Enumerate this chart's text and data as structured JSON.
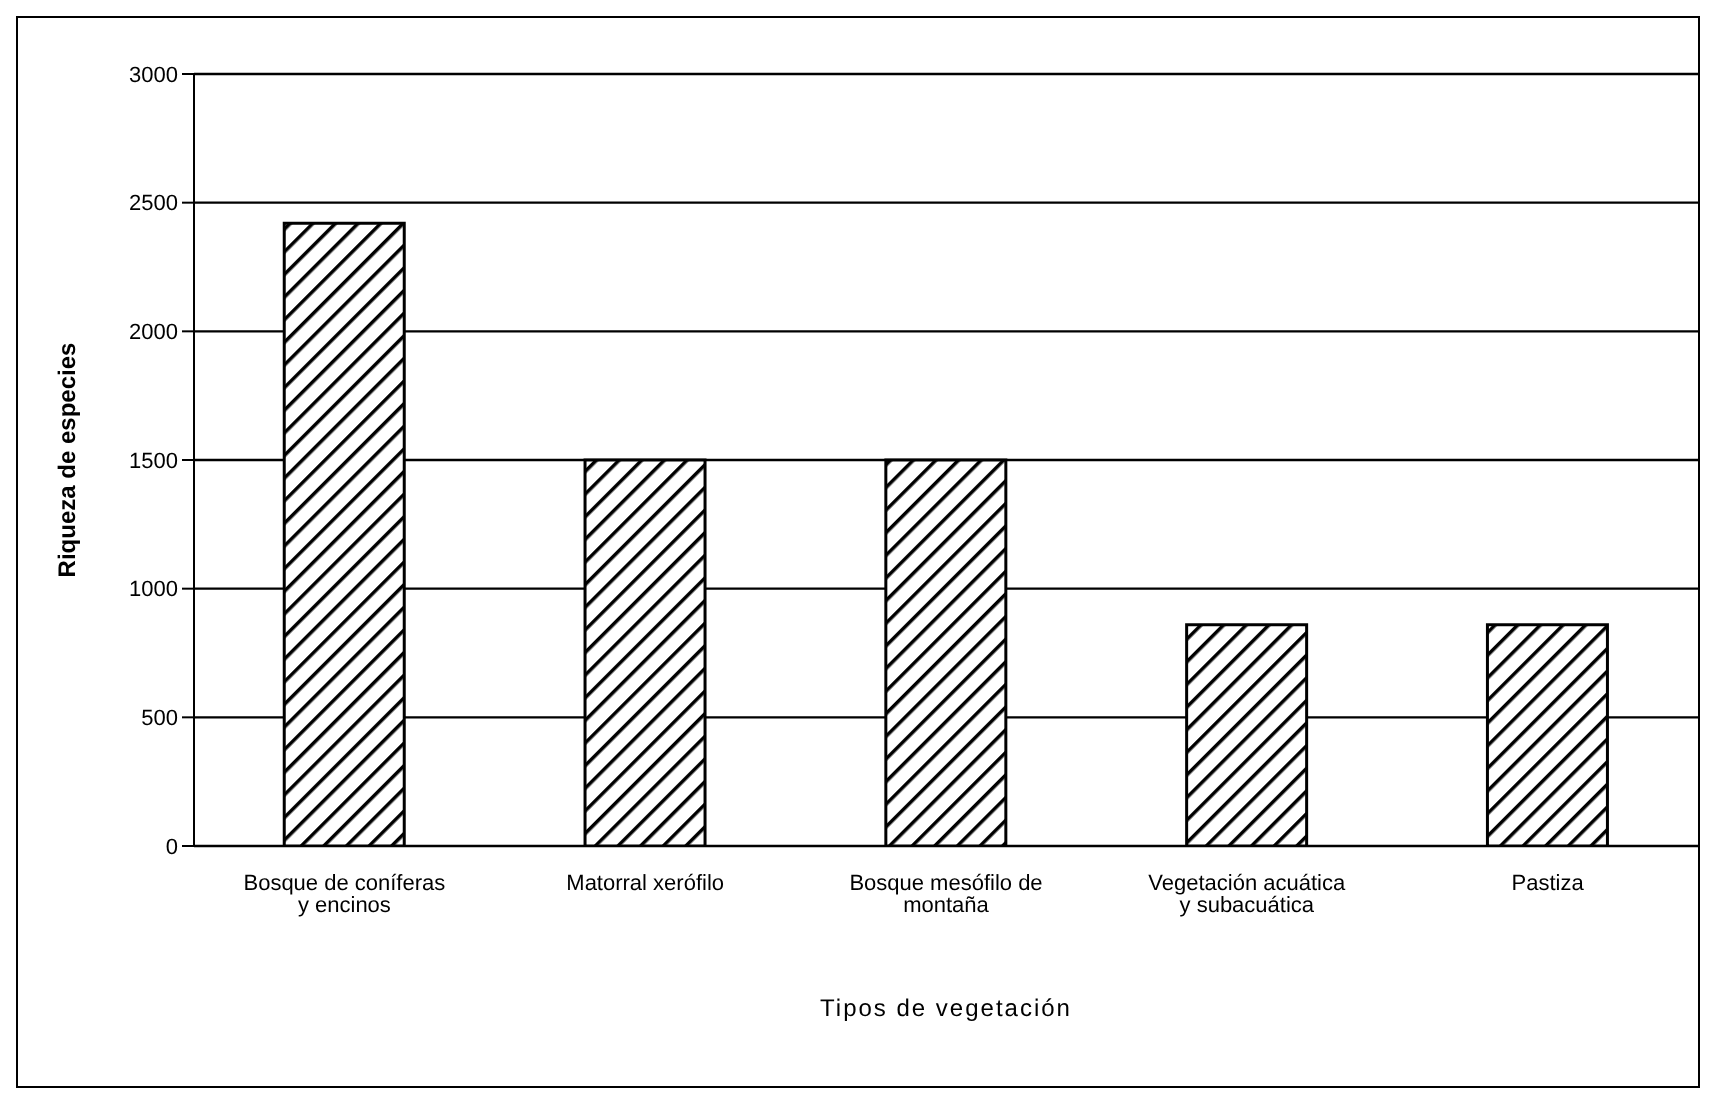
{
  "chart_data": {
    "type": "bar",
    "xlabel": "Tipos de vegetación",
    "ylabel": "Riqueza de especies",
    "categories": [
      "Bosque de coníferas y encinos",
      "Matorral xerófilo",
      "Bosque mesófilo de montaña",
      "Vegetación acuática y subacuática",
      "Pastiza"
    ],
    "values": [
      2420,
      1500,
      1500,
      860,
      860
    ],
    "color": "#000000",
    "ylim": [
      0,
      3000
    ],
    "yticks": [
      0,
      500,
      1000,
      1500,
      2000,
      2500,
      3000
    ],
    "grid": "y",
    "legend": false
  }
}
